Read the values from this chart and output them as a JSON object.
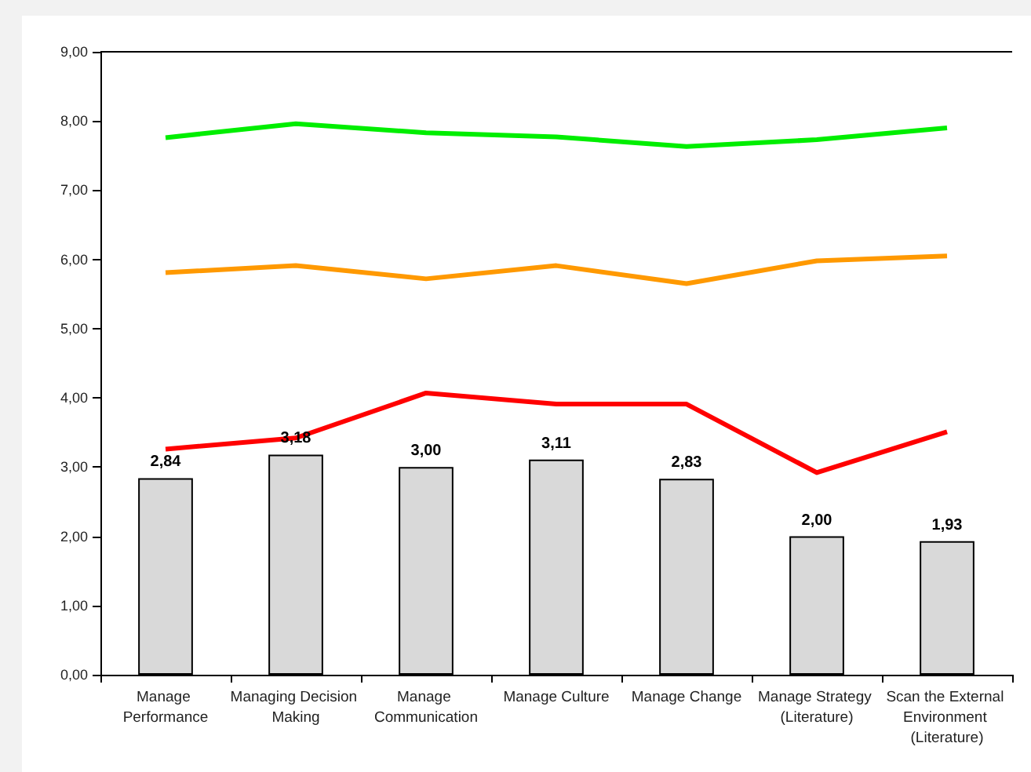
{
  "chart_data": {
    "type": "bar",
    "categories": [
      "Manage Performance",
      "Managing Decision Making",
      "Manage Communication",
      "Manage Culture",
      "Manage Change",
      "Manage Strategy (Literature)",
      "Scan the External Environment (Literature)"
    ],
    "ylim": [
      0,
      9
    ],
    "yticks": [
      {
        "value": 0,
        "label": "0,00"
      },
      {
        "value": 1,
        "label": "1,00"
      },
      {
        "value": 2,
        "label": "2,00"
      },
      {
        "value": 3,
        "label": "3,00"
      },
      {
        "value": 4,
        "label": "4,00"
      },
      {
        "value": 5,
        "label": "5,00"
      },
      {
        "value": 6,
        "label": "6,00"
      },
      {
        "value": 7,
        "label": "7,00"
      },
      {
        "value": 8,
        "label": "8,00"
      },
      {
        "value": 9,
        "label": "9,00"
      }
    ],
    "grid": false,
    "marker": "none",
    "series": [
      {
        "color": "#d9d9d9",
        "values": [
          2.84,
          3.18,
          3.0,
          3.11,
          2.83,
          2.0,
          1.93
        ],
        "value_labels": [
          "2,84",
          "3,18",
          "3,00",
          "3,11",
          "2,83",
          "2,00",
          "1,93"
        ]
      },
      {
        "type": "line",
        "color": "#00ee00",
        "values": [
          7.76,
          7.96,
          7.83,
          7.77,
          7.63,
          7.73,
          7.9
        ]
      },
      {
        "type": "line",
        "color": "#ff9900",
        "values": [
          5.81,
          5.91,
          5.72,
          5.91,
          5.65,
          5.98,
          6.05
        ]
      },
      {
        "type": "line",
        "color": "#ff0000",
        "values": [
          3.26,
          3.42,
          4.07,
          3.91,
          3.91,
          2.92,
          3.51
        ]
      }
    ]
  }
}
